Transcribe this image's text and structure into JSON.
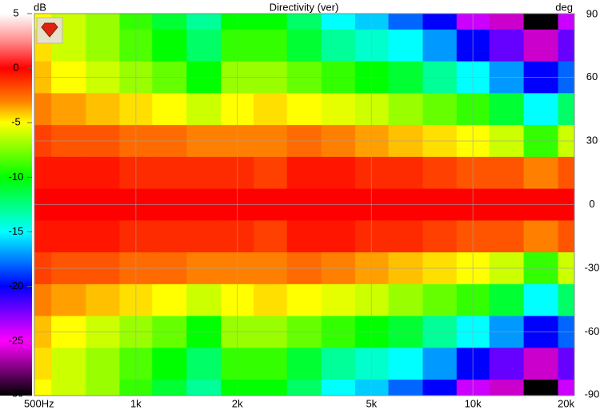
{
  "chart_data": {
    "type": "heatmap",
    "title": "Directivity (ver)",
    "colorbar_label": "dB",
    "ylabel": "deg",
    "log_x": true,
    "grid": true,
    "xlim": [
      500,
      20000
    ],
    "xticks": [
      {
        "value": 500,
        "label": "500Hz"
      },
      {
        "value": 1000,
        "label": "1k"
      },
      {
        "value": 2000,
        "label": "2k"
      },
      {
        "value": 5000,
        "label": "5k"
      },
      {
        "value": 10000,
        "label": "10k"
      },
      {
        "value": 20000,
        "label": "20k"
      }
    ],
    "ylim": [
      -90,
      90
    ],
    "yticks": [
      90,
      60,
      30,
      0,
      -30,
      -60,
      -90
    ],
    "clim": [
      -30,
      5
    ],
    "colorbar_ticks": [
      5,
      0,
      -5,
      -10,
      -15,
      -20,
      -25,
      -30
    ],
    "colorscale": [
      {
        "value": 5,
        "color": "#ffffff"
      },
      {
        "value": 2.5,
        "color": "#ff8c8c"
      },
      {
        "value": 0,
        "color": "#ff0000"
      },
      {
        "value": -3,
        "color": "#ff8000"
      },
      {
        "value": -5,
        "color": "#ffff00"
      },
      {
        "value": -10,
        "color": "#00ff00"
      },
      {
        "value": -15,
        "color": "#00ffff"
      },
      {
        "value": -20,
        "color": "#0000ff"
      },
      {
        "value": -25,
        "color": "#ff00ff"
      },
      {
        "value": -30,
        "color": "#000000"
      }
    ],
    "x": [
      500,
      630,
      800,
      1000,
      1250,
      1600,
      2000,
      2500,
      3150,
      4000,
      5000,
      6300,
      8000,
      10000,
      12500,
      16000,
      20000
    ],
    "y": [
      90,
      75,
      60,
      45,
      30,
      15,
      0,
      -15,
      -30,
      -45,
      -60,
      -75,
      -90
    ],
    "values": [
      [
        -5,
        -6,
        -7,
        -9,
        -11,
        -13,
        -10,
        -10,
        -12,
        -15,
        -16,
        -18,
        -20,
        -24,
        -26,
        -30,
        -24
      ],
      [
        -4.5,
        -6,
        -7,
        -8.5,
        -10,
        -12,
        -9,
        -9,
        -11,
        -13,
        -14,
        -15,
        -17,
        -20,
        -22,
        -26,
        -22
      ],
      [
        -4,
        -5,
        -6,
        -7,
        -8,
        -10,
        -7,
        -7,
        -8,
        -9,
        -10,
        -11,
        -13,
        -15,
        -17,
        -20,
        -18
      ],
      [
        -3,
        -3.5,
        -4,
        -4.5,
        -5,
        -6,
        -5,
        -4.5,
        -5,
        -5.5,
        -6,
        -7,
        -8,
        -9,
        -11,
        -15,
        -12
      ],
      [
        -1.5,
        -2,
        -2,
        -2.5,
        -2.5,
        -3,
        -3,
        -3,
        -2.5,
        -3,
        -3.5,
        -4,
        -4.5,
        -5,
        -6,
        -9,
        -6
      ],
      [
        -0.5,
        -0.5,
        -0.5,
        -1,
        -1,
        -1,
        -1,
        -1.5,
        -0.5,
        -0.5,
        -1,
        -1,
        -1.5,
        -2,
        -2,
        -3,
        -2
      ],
      [
        0,
        0,
        0,
        0,
        0,
        0,
        0,
        0,
        0,
        0,
        0,
        0,
        0,
        0,
        0,
        0,
        0
      ],
      [
        -0.5,
        -0.5,
        -0.5,
        -1,
        -1,
        -1,
        -1,
        -1.5,
        -0.5,
        -0.5,
        -1,
        -1,
        -1.5,
        -2,
        -2,
        -3,
        -2
      ],
      [
        -1.5,
        -2,
        -2,
        -2.5,
        -2.5,
        -3,
        -3,
        -3,
        -2.5,
        -3,
        -3.5,
        -4,
        -4.5,
        -5,
        -6,
        -9,
        -6
      ],
      [
        -3,
        -3.5,
        -4,
        -4.5,
        -5,
        -6,
        -5,
        -4.5,
        -5,
        -5.5,
        -6,
        -7,
        -8,
        -9,
        -11,
        -15,
        -12
      ],
      [
        -4,
        -5,
        -6,
        -7,
        -8,
        -10,
        -7,
        -7,
        -8,
        -9,
        -10,
        -11,
        -13,
        -15,
        -17,
        -20,
        -18
      ],
      [
        -4.5,
        -6,
        -7,
        -8.5,
        -10,
        -12,
        -9,
        -9,
        -11,
        -13,
        -14,
        -15,
        -17,
        -20,
        -22,
        -26,
        -22
      ],
      [
        -5,
        -6,
        -7,
        -9,
        -11,
        -13,
        -10,
        -10,
        -12,
        -15,
        -16,
        -18,
        -20,
        -24,
        -26,
        -30,
        -24
      ]
    ]
  }
}
